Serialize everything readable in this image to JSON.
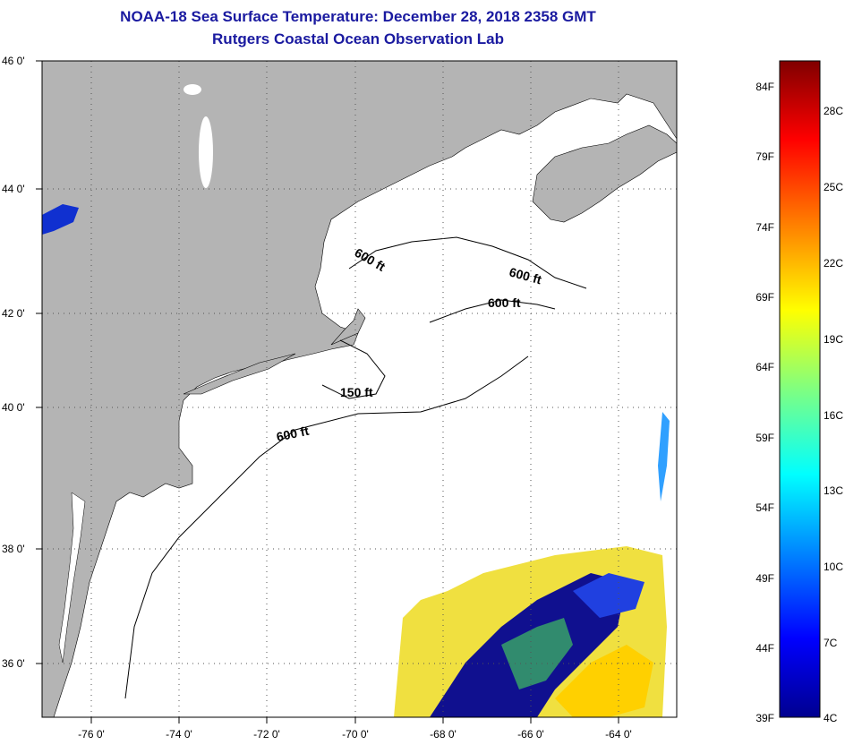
{
  "title": {
    "line1": "NOAA-18 Sea Surface Temperature:  December 28, 2018 2358 GMT",
    "line2": "Rutgers Coastal Ocean Observation Lab"
  },
  "map": {
    "lat_labels": [
      "46 0'",
      "44 0'",
      "42 0'",
      "40 0'",
      "38 0'",
      "36 0'"
    ],
    "lon_labels": [
      "-76 0'",
      "-74 0'",
      "-72 0'",
      "-70 0'",
      "-68 0'",
      "-66 0'",
      "-64 0'"
    ],
    "contour_labels": [
      "600 ft",
      "600 ft",
      "600 ft",
      "150 ft",
      "600 ft"
    ],
    "colors": {
      "land": "#b4b4b4",
      "ocean": "#ffffff",
      "grid": "#555555"
    }
  },
  "colorbar": {
    "fahrenheit": [
      "84F",
      "79F",
      "74F",
      "69F",
      "64F",
      "59F",
      "54F",
      "49F",
      "44F",
      "39F"
    ],
    "celsius": [
      "28C",
      "25C",
      "22C",
      "19C",
      "16C",
      "13C",
      "10C",
      "7C",
      "4C"
    ],
    "colormap": [
      "#00008f",
      "#0000ff",
      "#0080ff",
      "#00ffff",
      "#80ff80",
      "#ffff00",
      "#ff8000",
      "#ff0000",
      "#800000"
    ]
  }
}
